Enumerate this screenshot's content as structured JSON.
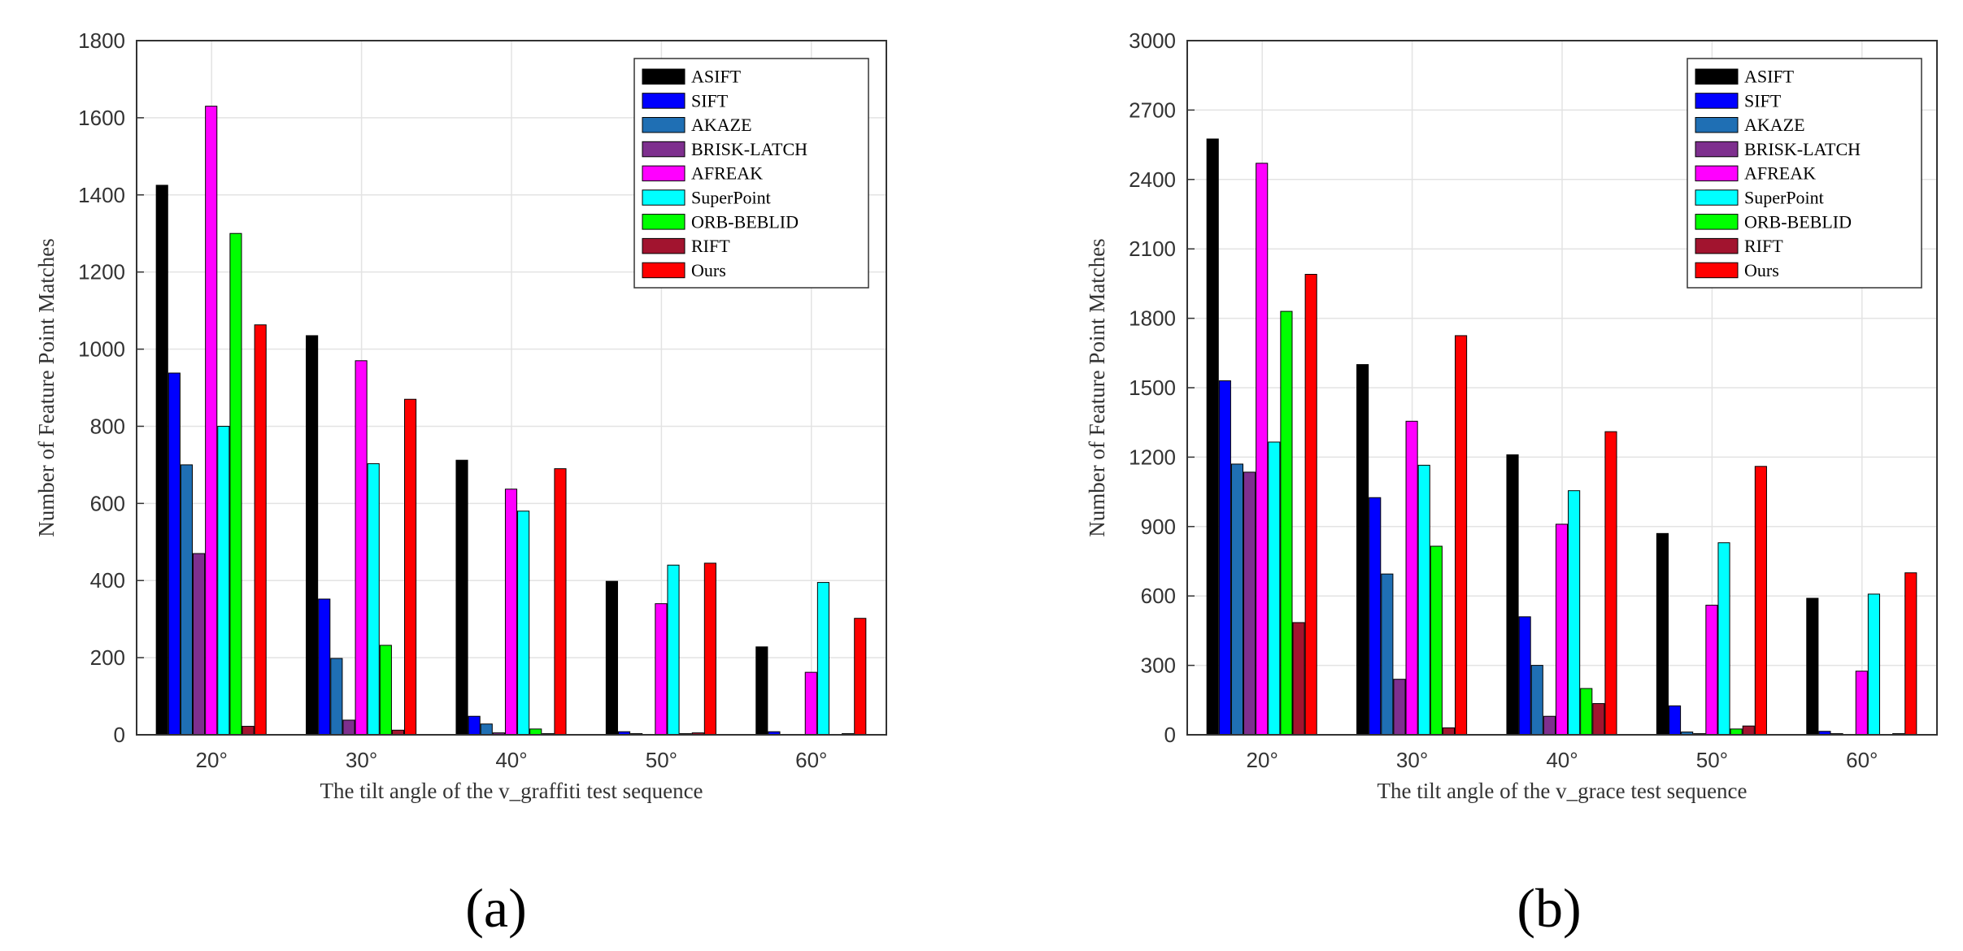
{
  "chart_data": [
    {
      "type": "bar",
      "categories": [
        "20°",
        "30°",
        "40°",
        "50°",
        "60°"
      ],
      "xlabel": "The tilt angle of the v_graffiti test sequence",
      "ylabel": "Number of Feature Point Matches",
      "ylim": [
        0,
        1800
      ],
      "yticks": [
        0,
        200,
        400,
        600,
        800,
        1000,
        1200,
        1400,
        1600,
        1800
      ],
      "grid": true,
      "legend_position": "top-right",
      "panel_label": "(a)",
      "series": [
        {
          "name": "ASIFT",
          "color": "#000000",
          "values": [
            1425,
            1035,
            712,
            398,
            228
          ]
        },
        {
          "name": "SIFT",
          "color": "#0000ff",
          "values": [
            938,
            352,
            48,
            8,
            8
          ]
        },
        {
          "name": "AKAZE",
          "color": "#1f6fb4",
          "values": [
            700,
            198,
            28,
            3,
            0
          ]
        },
        {
          "name": "BRISK-LATCH",
          "color": "#7e2f8e",
          "values": [
            470,
            38,
            5,
            0,
            0
          ]
        },
        {
          "name": "AFREAK",
          "color": "#ff00ff",
          "values": [
            1630,
            970,
            637,
            340,
            162
          ]
        },
        {
          "name": "SuperPoint",
          "color": "#00ffff",
          "values": [
            800,
            703,
            580,
            440,
            395
          ]
        },
        {
          "name": "ORB-BEBLID",
          "color": "#00ff00",
          "values": [
            1300,
            232,
            15,
            3,
            0
          ]
        },
        {
          "name": "RIFT",
          "color": "#a2142f",
          "values": [
            22,
            12,
            3,
            5,
            3
          ]
        },
        {
          "name": "Ours",
          "color": "#ff0000",
          "values": [
            1063,
            870,
            690,
            445,
            302
          ]
        }
      ]
    },
    {
      "type": "bar",
      "categories": [
        "20°",
        "30°",
        "40°",
        "50°",
        "60°"
      ],
      "xlabel": "The tilt angle of the v_grace test sequence",
      "ylabel": "Number of Feature Point Matches",
      "ylim": [
        0,
        3000
      ],
      "yticks": [
        0,
        300,
        600,
        900,
        1200,
        1500,
        1800,
        2100,
        2400,
        2700,
        3000
      ],
      "grid": true,
      "legend_position": "top-right",
      "panel_label": "(b)",
      "series": [
        {
          "name": "ASIFT",
          "color": "#000000",
          "values": [
            2575,
            1600,
            1210,
            870,
            590
          ]
        },
        {
          "name": "SIFT",
          "color": "#0000ff",
          "values": [
            1530,
            1025,
            510,
            125,
            15
          ]
        },
        {
          "name": "AKAZE",
          "color": "#1f6fb4",
          "values": [
            1170,
            695,
            300,
            12,
            5
          ]
        },
        {
          "name": "BRISK-LATCH",
          "color": "#7e2f8e",
          "values": [
            1135,
            240,
            80,
            5,
            0
          ]
        },
        {
          "name": "AFREAK",
          "color": "#ff00ff",
          "values": [
            2470,
            1355,
            910,
            560,
            275
          ]
        },
        {
          "name": "SuperPoint",
          "color": "#00ffff",
          "values": [
            1265,
            1165,
            1055,
            830,
            608
          ]
        },
        {
          "name": "ORB-BEBLID",
          "color": "#00ff00",
          "values": [
            1830,
            815,
            200,
            25,
            0
          ]
        },
        {
          "name": "RIFT",
          "color": "#a2142f",
          "values": [
            485,
            30,
            135,
            38,
            5
          ]
        },
        {
          "name": "Ours",
          "color": "#ff0000",
          "values": [
            1990,
            1725,
            1310,
            1160,
            700
          ]
        }
      ]
    }
  ]
}
